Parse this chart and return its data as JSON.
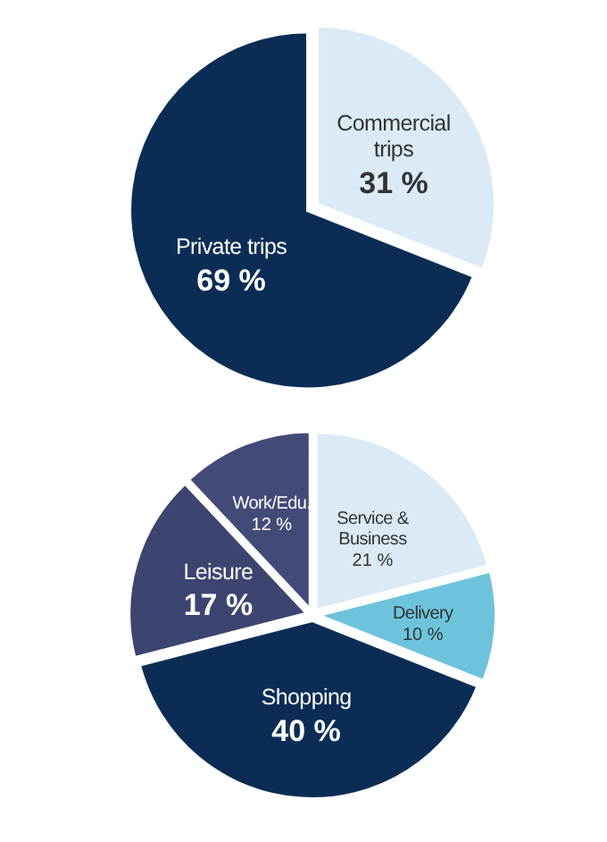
{
  "chart_data": [
    {
      "type": "pie",
      "categories": [
        "Commercial trips",
        "Private trips"
      ],
      "values": [
        31,
        69
      ],
      "colors": [
        "#dceaf6",
        "#0b2d55"
      ],
      "value_labels": [
        "31 %",
        "69 %"
      ]
    },
    {
      "type": "pie",
      "categories": [
        "Service & Business",
        "Delivery",
        "Shopping",
        "Leisure",
        "Work/Edu."
      ],
      "values": [
        21,
        10,
        40,
        17,
        12
      ],
      "colors": [
        "#dceaf6",
        "#6ec3dc",
        "#0b2d55",
        "#3d4470",
        "#434a78"
      ],
      "value_labels": [
        "21 %",
        "10 %",
        "40 %",
        "17 %",
        "12 %"
      ]
    }
  ]
}
